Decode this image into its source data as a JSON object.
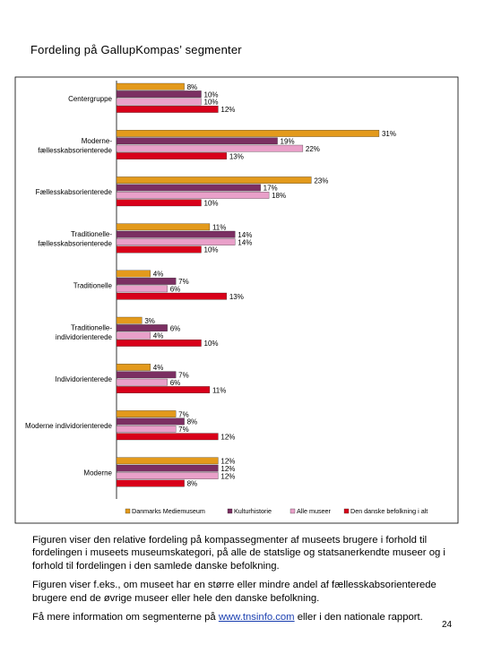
{
  "title": "Fordeling på GallupKompas’ segmenter",
  "colors": {
    "Danmarks Mediemuseum": "#e39a1c",
    "Kulturhistorie": "#7b2f62",
    "Alle museer": "#e9a0c9",
    "Den danske befolkning i alt": "#d8001a"
  },
  "chart_data": {
    "type": "bar",
    "orientation": "horizontal",
    "categories": [
      "Centergruppe",
      "Moderne-fællesskabsorienterede",
      "Fællesskabsorienterede",
      "Traditionelle-fællesskabsorienterede",
      "Traditionelle",
      "Traditionelle-individorienterede",
      "Individorienterede",
      "Moderne individorienterede",
      "Moderne"
    ],
    "category_lines": [
      [
        "Centergruppe"
      ],
      [
        "Moderne-",
        "fællesskabsorienterede"
      ],
      [
        "Fællesskabsorienterede"
      ],
      [
        "Traditionelle-",
        "fællesskabsorienterede"
      ],
      [
        "Traditionelle"
      ],
      [
        "Traditionelle-",
        "individorienterede"
      ],
      [
        "Individorienterede"
      ],
      [
        "Moderne individorienterede"
      ],
      [
        "Moderne"
      ]
    ],
    "series": [
      {
        "name": "Danmarks Mediemuseum",
        "values": [
          8,
          31,
          23,
          11,
          4,
          3,
          4,
          7,
          12
        ],
        "labels": [
          "8%",
          "31%",
          "23%",
          "11%",
          "4%",
          "3%",
          "4%",
          "7%",
          "12%"
        ]
      },
      {
        "name": "Kulturhistorie",
        "values": [
          10,
          19,
          17,
          14,
          7,
          6,
          7,
          8,
          12
        ],
        "labels": [
          "10%",
          "19%",
          "17%",
          "14%",
          "7%",
          "6%",
          "7%",
          "8%",
          "12%"
        ]
      },
      {
        "name": "Alle museer",
        "values": [
          10,
          22,
          18,
          14,
          6,
          4,
          6,
          7,
          12
        ],
        "labels": [
          "10%",
          "22%",
          "18%",
          "14%",
          "6%",
          "4%",
          "6%",
          "7%",
          "12%"
        ]
      },
      {
        "name": "Den danske befolkning i alt",
        "values": [
          12,
          13,
          10,
          10,
          13,
          10,
          11,
          12,
          8
        ],
        "labels": [
          "12%",
          "13%",
          "10%",
          "10%",
          "13%",
          "10%",
          "11%",
          "12%",
          "8%"
        ]
      }
    ],
    "xlim": [
      0,
      34
    ],
    "grid": false,
    "legend_position": "bottom"
  },
  "text": {
    "p1": "Figuren viser den relative fordeling på kompassegmenter af museets brugere i forhold til fordelingen i museets museumskategori, på alle de statslige og statsanerkendte museer og i forhold til fordelingen i den samlede danske befolkning.",
    "p2": "Figuren viser f.eks., om museet har en større eller mindre andel af fællesskabsorienterede brugere end de øvrige museer eller hele den danske befolkning.",
    "p3_prefix": "Få mere information om segmenterne på ",
    "p3_link": "www.tnsinfo.com",
    "p3_suffix": " eller i den nationale rapport."
  },
  "page_number": "24"
}
